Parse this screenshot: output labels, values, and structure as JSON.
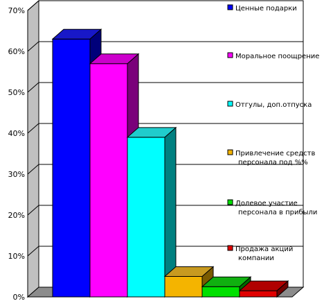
{
  "chart_data": {
    "type": "bar",
    "style": "3d",
    "ylim": [
      0,
      70
    ],
    "yticks": [
      "0%",
      "10%",
      "20%",
      "30%",
      "40%",
      "50%",
      "60%",
      "70%"
    ],
    "grid": true,
    "legend_placement": "right",
    "series": [
      {
        "name": "Ценные подарки",
        "value": 63,
        "color": "#0000ff",
        "side": "#00007a",
        "top": "#1818c8"
      },
      {
        "name": "Моральное поощрение",
        "value": 57,
        "color": "#ff00ff",
        "side": "#7a007a",
        "top": "#cc00cc"
      },
      {
        "name": "Отгулы, доп.отпуска",
        "value": 39,
        "color": "#00ffff",
        "side": "#008080",
        "top": "#20cccc"
      },
      {
        "name": "Привлечение средств персонала под %%",
        "value": 5,
        "color": "#f4b400",
        "side": "#7a5a00",
        "top": "#c89a20"
      },
      {
        "name": "Долевое участие персонала в прибыли",
        "value": 2.5,
        "color": "#00e000",
        "side": "#006a00",
        "top": "#10b010"
      },
      {
        "name": "Продажа акций компании",
        "value": 1.5,
        "color": "#e00000",
        "side": "#700000",
        "top": "#b00000"
      }
    ]
  }
}
